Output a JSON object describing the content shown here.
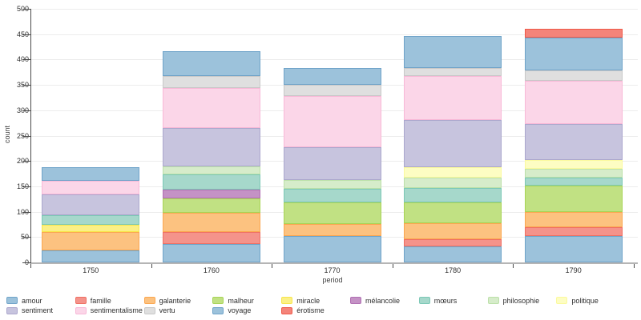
{
  "figure": {
    "y_axis_title": "count",
    "x_axis_title": "period"
  },
  "chart_data": {
    "type": "bar",
    "stacked": true,
    "title": "",
    "xlabel": "period",
    "ylabel": "count",
    "ylim": [
      0,
      500
    ],
    "yticks": [
      0,
      50,
      100,
      150,
      200,
      250,
      300,
      350,
      400,
      450,
      500
    ],
    "grid": true,
    "legend_position": "bottom",
    "legend_columns": 9,
    "categories": [
      "1750",
      "1760",
      "1770",
      "1780",
      "1790"
    ],
    "stack_order_bottom_to_top": [
      "amour",
      "famille",
      "galanterie",
      "malheur",
      "miracle",
      "mélancolie",
      "mœurs",
      "philosophie",
      "politique",
      "sentiment",
      "sentimentalisme",
      "vertu",
      "voyage",
      "érotisme"
    ],
    "series": [
      {
        "name": "amour",
        "fill": "#9cc2db",
        "stroke": "#6fa3c9",
        "values": [
          23,
          37,
          52,
          31,
          52
        ]
      },
      {
        "name": "famille",
        "fill": "#f4938b",
        "stroke": "#ef6f63",
        "values": [
          0,
          23,
          0,
          15,
          18
        ]
      },
      {
        "name": "galanterie",
        "fill": "#fcc280",
        "stroke": "#fba750",
        "values": [
          37,
          38,
          24,
          32,
          30
        ]
      },
      {
        "name": "malheur",
        "fill": "#c1e183",
        "stroke": "#a8d456",
        "values": [
          0,
          28,
          43,
          41,
          51
        ]
      },
      {
        "name": "miracle",
        "fill": "#fbf086",
        "stroke": "#f8e54b",
        "values": [
          14,
          0,
          0,
          0,
          0
        ]
      },
      {
        "name": "mélancolie",
        "fill": "#c492c5",
        "stroke": "#b170b3",
        "values": [
          0,
          17,
          0,
          0,
          0
        ]
      },
      {
        "name": "mœurs",
        "fill": "#a6d8cb",
        "stroke": "#7cc8b6",
        "values": [
          19,
          30,
          26,
          28,
          16
        ]
      },
      {
        "name": "philosophie",
        "fill": "#d6ecca",
        "stroke": "#bce0a9",
        "values": [
          0,
          17,
          18,
          20,
          18
        ]
      },
      {
        "name": "politique",
        "fill": "#fdfdc3",
        "stroke": "#fbfa9d",
        "values": [
          0,
          0,
          0,
          20,
          17
        ]
      },
      {
        "name": "sentiment",
        "fill": "#c7c4de",
        "stroke": "#aba7cd",
        "values": [
          41,
          75,
          64,
          94,
          71
        ]
      },
      {
        "name": "sentimentalisme",
        "fill": "#fbd6e8",
        "stroke": "#f8b8d7",
        "values": [
          27,
          79,
          101,
          86,
          85
        ]
      },
      {
        "name": "vertu",
        "fill": "#dfdfdf",
        "stroke": "#c8c8c8",
        "values": [
          0,
          24,
          22,
          17,
          21
        ]
      },
      {
        "name": "voyage",
        "fill": "#9cc2db",
        "stroke": "#6fa3c9",
        "values": [
          26,
          49,
          33,
          63,
          64
        ]
      },
      {
        "name": "érotisme",
        "fill": "#f4847a",
        "stroke": "#ef5847",
        "values": [
          0,
          0,
          0,
          0,
          18
        ]
      }
    ],
    "totals": [
      187,
      417,
      383,
      447,
      461
    ]
  }
}
